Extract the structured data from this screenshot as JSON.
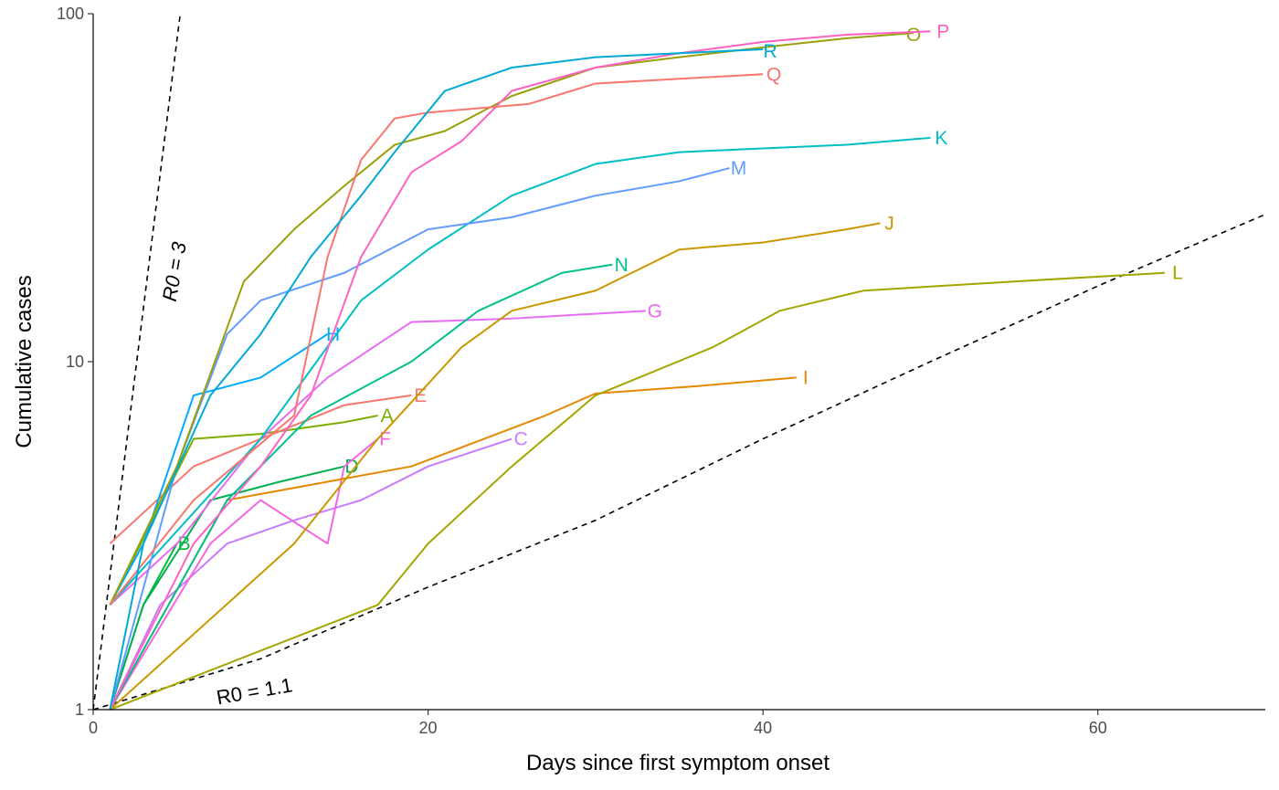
{
  "chart_data": {
    "type": "line",
    "title": "",
    "xlabel": "Days since first symptom onset",
    "ylabel": "Cumulative cases",
    "xlim": [
      0,
      70
    ],
    "ylim": [
      1,
      100
    ],
    "y_scale": "log10",
    "x_ticks": [
      0,
      20,
      40,
      60
    ],
    "y_ticks": [
      1,
      10,
      100
    ],
    "grid": false,
    "legend": "none (series labelled at line ends)",
    "reference_lines": [
      {
        "label": "R0 = 3",
        "style": "dashed",
        "color": "#000000",
        "points": [
          [
            0,
            1
          ],
          [
            5.2,
            100
          ]
        ]
      },
      {
        "label": "R0 = 1.1",
        "style": "dashed",
        "color": "#000000",
        "points": [
          [
            0,
            1
          ],
          [
            10,
            1.4
          ],
          [
            20,
            2.25
          ],
          [
            30,
            3.5
          ],
          [
            40,
            6.0
          ],
          [
            50,
            10.0
          ],
          [
            60,
            16.5
          ],
          [
            70,
            26.5
          ]
        ]
      }
    ],
    "series": [
      {
        "name": "A",
        "color": "#7CAE00",
        "x": [
          1,
          6,
          10,
          15,
          17
        ],
        "y": [
          2,
          6,
          6.2,
          6.7,
          7
        ]
      },
      {
        "name": "B",
        "color": "#00BA38",
        "x": [
          1,
          3,
          5
        ],
        "y": [
          1,
          2,
          3
        ]
      },
      {
        "name": "C",
        "color": "#C77CFF",
        "x": [
          1,
          4,
          8,
          12,
          16,
          20,
          25
        ],
        "y": [
          1,
          2,
          3,
          3.5,
          4,
          5,
          6
        ]
      },
      {
        "name": "D",
        "color": "#00B050",
        "x": [
          1,
          3,
          7,
          11,
          15
        ],
        "y": [
          1,
          2,
          4,
          4.5,
          5
        ]
      },
      {
        "name": "E",
        "color": "#F8766D",
        "x": [
          1,
          6,
          10,
          15,
          19
        ],
        "y": [
          3,
          5,
          6,
          7.5,
          8
        ]
      },
      {
        "name": "F",
        "color": "#F564E3",
        "x": [
          1,
          7,
          10,
          14,
          15,
          17
        ],
        "y": [
          1,
          3,
          4,
          3,
          5,
          6
        ]
      },
      {
        "name": "G",
        "color": "#E76BF3",
        "x": [
          1,
          5,
          10,
          14,
          19,
          25,
          33
        ],
        "y": [
          2,
          3,
          6,
          9,
          13,
          13.3,
          14
        ]
      },
      {
        "name": "H",
        "color": "#00A9FF",
        "x": [
          1,
          3,
          6,
          10,
          14
        ],
        "y": [
          2,
          3,
          8,
          9,
          12
        ]
      },
      {
        "name": "I",
        "color": "#E58700",
        "x": [
          1,
          8,
          19,
          27,
          30,
          36,
          42
        ],
        "y": [
          1,
          4,
          5,
          7,
          8.1,
          8.5,
          9
        ]
      },
      {
        "name": "J",
        "color": "#C99800",
        "x": [
          1,
          12,
          17,
          22,
          25,
          30,
          35,
          40,
          45,
          47
        ],
        "y": [
          1,
          3,
          6,
          11,
          14,
          16,
          21,
          22,
          24,
          25
        ]
      },
      {
        "name": "K",
        "color": "#00BFC4",
        "x": [
          1,
          10,
          16,
          20,
          25,
          30,
          35,
          40,
          45,
          50
        ],
        "y": [
          2,
          6,
          15,
          21,
          30,
          37,
          40,
          41,
          42,
          44
        ]
      },
      {
        "name": "L",
        "color": "#A3A500",
        "x": [
          1,
          17,
          20,
          25,
          30,
          37,
          41,
          46,
          55,
          64
        ],
        "y": [
          1,
          2,
          3,
          5,
          8,
          11,
          14,
          16,
          17,
          18
        ]
      },
      {
        "name": "M",
        "color": "#619CFF",
        "x": [
          1,
          5,
          8,
          10,
          15,
          20,
          25,
          30,
          35,
          38
        ],
        "y": [
          1,
          5,
          12,
          15,
          18,
          24,
          26,
          30,
          33,
          36
        ]
      },
      {
        "name": "N",
        "color": "#00C08B",
        "x": [
          1,
          8,
          13,
          19,
          23,
          28,
          31
        ],
        "y": [
          1,
          4,
          7,
          10,
          14,
          18,
          19
        ]
      },
      {
        "name": "O",
        "color": "#9AA00C",
        "x": [
          1,
          5,
          9,
          12,
          15,
          18,
          21,
          25,
          30,
          35,
          40,
          45,
          49
        ],
        "y": [
          2,
          5,
          17,
          24,
          32,
          42,
          46,
          58,
          70,
          75,
          80,
          85,
          88
        ]
      },
      {
        "name": "P",
        "color": "#FF61C3",
        "x": [
          1,
          6,
          10,
          13,
          16,
          19,
          22,
          25,
          30,
          35,
          40,
          45,
          50
        ],
        "y": [
          1,
          3,
          5,
          8,
          20,
          35,
          43,
          60,
          70,
          77,
          83,
          87,
          89
        ]
      },
      {
        "name": "Q",
        "color": "#F8766D",
        "x": [
          1,
          6,
          12,
          14,
          16,
          18,
          20,
          26,
          30,
          35,
          40
        ],
        "y": [
          2,
          4,
          7,
          20,
          38,
          50,
          52,
          55,
          63,
          65,
          67
        ]
      },
      {
        "name": "R",
        "color": "#00A9D6",
        "x": [
          1,
          3,
          7,
          10,
          13,
          16,
          18,
          21,
          25,
          30,
          35,
          40
        ],
        "y": [
          1,
          3,
          8,
          12,
          20,
          30,
          40,
          60,
          70,
          75,
          77,
          79
        ]
      }
    ]
  }
}
